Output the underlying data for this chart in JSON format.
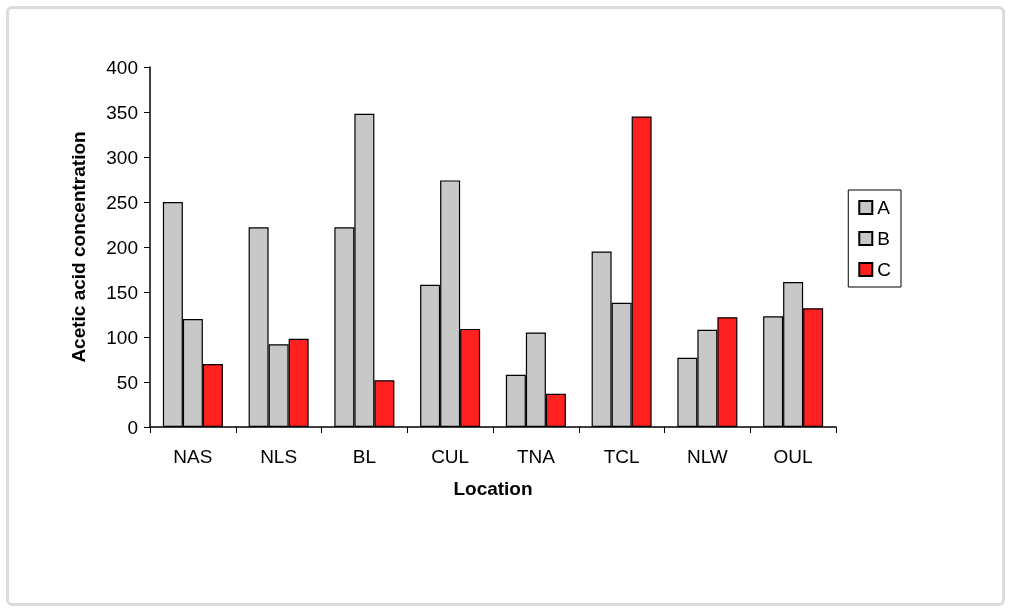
{
  "chart_data": {
    "type": "bar",
    "xlabel": "Location",
    "ylabel": "Acetic acid concentration",
    "categories": [
      "NAS",
      "NLS",
      "BL",
      "CUL",
      "TNA",
      "TCL",
      "NLW",
      "OUL"
    ],
    "series": [
      {
        "name": "A",
        "color": "#c8c8c8",
        "values": [
          250,
          222,
          222,
          158,
          58,
          195,
          77,
          123
        ]
      },
      {
        "name": "B",
        "color": "#c8c8c8",
        "values": [
          120,
          92,
          348,
          274,
          105,
          138,
          108,
          161
        ]
      },
      {
        "name": "C",
        "color": "#ff2020",
        "values": [
          70,
          98,
          52,
          109,
          37,
          345,
          122,
          132
        ]
      }
    ],
    "ylim": [
      0,
      400
    ],
    "yticks": [
      0,
      50,
      100,
      150,
      200,
      250,
      300,
      350,
      400
    ],
    "grid": false,
    "legend": "right"
  }
}
